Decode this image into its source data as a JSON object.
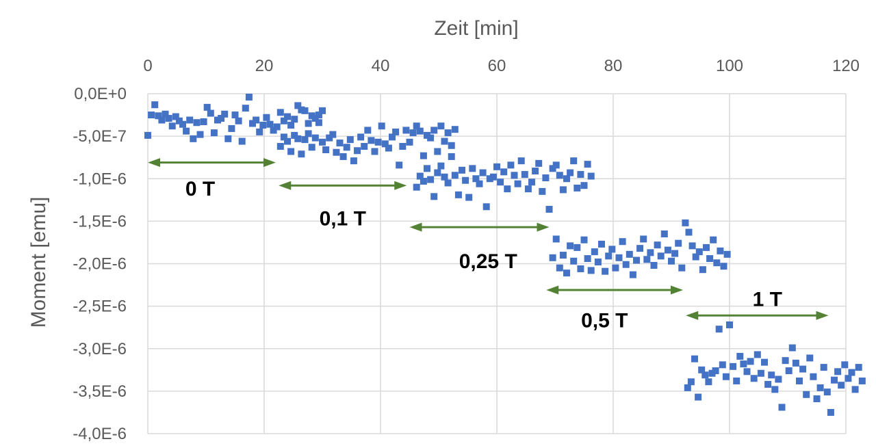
{
  "chart_data": {
    "type": "scatter",
    "xlabel": "Zeit [min]",
    "ylabel": "Moment [emu]",
    "xlim": [
      0,
      120
    ],
    "ylim": [
      -4e-06,
      0
    ],
    "x_ticks": [
      0,
      20,
      40,
      60,
      80,
      100,
      120
    ],
    "x_tick_labels": [
      "0",
      "20",
      "40",
      "60",
      "80",
      "100",
      "120"
    ],
    "y_ticks": [
      0,
      -5e-07,
      -1e-06,
      -1.5e-06,
      -2e-06,
      -2.5e-06,
      -3e-06,
      -3.5e-06,
      -4e-06
    ],
    "y_tick_labels": [
      "0,0E+0",
      "-5,0E-7",
      "-1,0E-6",
      "-1,5E-6",
      "-2,0E-6",
      "-2,5E-6",
      "-3,0E-6",
      "-3,5E-6",
      "-4,0E-6"
    ],
    "x_axis_position": "top",
    "grid": true,
    "marker_color": "#4472c4",
    "arrow_color": "#548235",
    "annotations": [
      {
        "label": "0 T",
        "x_start": 0,
        "x_end": 22,
        "arrow_y": -8.1e-07,
        "label_x": 9,
        "label_y": -1.12e-06
      },
      {
        "label": "0,1 T",
        "x_start": 22.5,
        "x_end": 44.5,
        "arrow_y": -1.08e-06,
        "label_x": 33.5,
        "label_y": -1.47e-06
      },
      {
        "label": "0,25 T",
        "x_start": 45,
        "x_end": 69,
        "arrow_y": -1.57e-06,
        "label_x": 58.5,
        "label_y": -1.97e-06
      },
      {
        "label": "0,5 T",
        "x_start": 68.5,
        "x_end": 92,
        "arrow_y": -2.31e-06,
        "label_x": 78.5,
        "label_y": -2.67e-06
      },
      {
        "label": "1 T",
        "x_start": 92.5,
        "x_end": 117,
        "arrow_y": -2.61e-06,
        "label_x": 106.5,
        "label_y": -2.42e-06
      }
    ],
    "series": [
      {
        "points": [
          [
            0,
            -4.9e-07
          ],
          [
            0.6,
            -2.5e-07
          ],
          [
            1.2,
            -1.3e-07
          ],
          [
            1.8,
            -2.6e-07
          ],
          [
            2.4,
            -3.1e-07
          ],
          [
            3,
            -2.4e-07
          ],
          [
            3.6,
            -2.9e-07
          ],
          [
            4.2,
            -3.8e-07
          ],
          [
            4.8,
            -2.7e-07
          ],
          [
            5.4,
            -3.2e-07
          ],
          [
            6,
            -3.6e-07
          ],
          [
            6.6,
            -4.4e-07
          ],
          [
            7.2,
            -3.1e-07
          ],
          [
            7.8,
            -5.3e-07
          ],
          [
            8.4,
            -3.4e-07
          ],
          [
            9,
            -4.8e-07
          ],
          [
            9.6,
            -3.3e-07
          ],
          [
            10.2,
            -1.6e-07
          ],
          [
            10.8,
            -2.3e-07
          ],
          [
            11.4,
            -4.6e-07
          ],
          [
            12,
            -3.1e-07
          ],
          [
            12.6,
            -2.9e-07
          ],
          [
            13.2,
            -2.4e-07
          ],
          [
            13.8,
            -5.3e-07
          ],
          [
            14.4,
            -4.1e-07
          ],
          [
            15,
            -2.5e-07
          ],
          [
            15.6,
            -3.2e-07
          ],
          [
            16.2,
            -5.6e-07
          ],
          [
            16.8,
            -1.7e-07
          ],
          [
            17.4,
            -4e-08
          ],
          [
            18,
            -3.5e-07
          ],
          [
            18.6,
            -3.1e-07
          ],
          [
            19.2,
            -4.5e-07
          ],
          [
            19.8,
            -3.7e-07
          ],
          [
            20.4,
            -2.8e-07
          ],
          [
            21,
            -3.6e-07
          ],
          [
            21.6,
            -4.3e-07
          ],
          [
            22.2,
            -3.9e-07
          ],
          [
            22.8,
            -2.2e-07
          ],
          [
            23.4,
            -3.2e-07
          ],
          [
            24,
            -2.7e-07
          ],
          [
            24.6,
            -3.7e-07
          ],
          [
            25.2,
            -3e-07
          ],
          [
            25.8,
            -1.4e-07
          ],
          [
            26.4,
            -1.9e-07
          ],
          [
            27,
            -2e-07
          ],
          [
            27.6,
            -3.5e-07
          ],
          [
            28.2,
            -2.6e-07
          ],
          [
            28.8,
            -2.9e-07
          ],
          [
            29.4,
            -3.4e-07
          ],
          [
            30,
            -2e-07
          ],
          [
            22.8,
            -6.2e-07
          ],
          [
            23.4,
            -5.1e-07
          ],
          [
            24,
            -5.6e-07
          ],
          [
            24.6,
            -6.8e-07
          ],
          [
            25.2,
            -4.9e-07
          ],
          [
            25.8,
            -5.3e-07
          ],
          [
            26.4,
            -7.1e-07
          ],
          [
            27,
            -5.4e-07
          ],
          [
            27.6,
            -4.7e-07
          ],
          [
            28.2,
            -6.3e-07
          ],
          [
            28.8,
            -5.2e-07
          ],
          [
            29.4,
            -2.5e-07
          ],
          [
            30,
            -5.7e-07
          ],
          [
            30.6,
            -6.6e-07
          ],
          [
            31.2,
            -5.2e-07
          ],
          [
            31.8,
            -4.8e-07
          ],
          [
            32.4,
            -6.9e-07
          ],
          [
            33,
            -5.8e-07
          ],
          [
            33.6,
            -7.4e-07
          ],
          [
            34.2,
            -6.3e-07
          ],
          [
            34.8,
            -5.4e-07
          ],
          [
            35.4,
            -7.9e-07
          ],
          [
            36,
            -6.7e-07
          ],
          [
            36.6,
            -5.1e-07
          ],
          [
            37.2,
            -6.2e-07
          ],
          [
            37.8,
            -4.3e-07
          ],
          [
            38.4,
            -5.5e-07
          ],
          [
            39,
            -6.8e-07
          ],
          [
            39.6,
            -5.7e-07
          ],
          [
            40.2,
            -3.8e-07
          ],
          [
            40.8,
            -5.9e-07
          ],
          [
            41.4,
            -6.4e-07
          ],
          [
            42,
            -5.1e-07
          ],
          [
            42.6,
            -4.5e-07
          ],
          [
            43.2,
            -8.4e-07
          ],
          [
            43.8,
            -6.2e-07
          ],
          [
            44.4,
            -4.3e-07
          ],
          [
            45,
            -5.7e-07
          ],
          [
            45.6,
            -4.6e-07
          ],
          [
            46.2,
            -3.8e-07
          ],
          [
            46.8,
            -4.4e-07
          ],
          [
            47.4,
            -7.3e-07
          ],
          [
            48,
            -4.9e-07
          ],
          [
            48.6,
            -5.2e-07
          ],
          [
            49.2,
            -4.3e-07
          ],
          [
            49.8,
            -6.8e-07
          ],
          [
            50.4,
            -3.8e-07
          ],
          [
            51,
            -5.6e-07
          ],
          [
            51.6,
            -4.6e-07
          ],
          [
            52.2,
            -6.1e-07
          ],
          [
            52.8,
            -4.2e-07
          ],
          [
            46.2,
            -1.1e-06
          ],
          [
            46.8,
            -9.7e-07
          ],
          [
            47.4,
            -1.03e-06
          ],
          [
            48,
            -8.8e-07
          ],
          [
            48.6,
            -1.01e-06
          ],
          [
            49.2,
            -1.21e-06
          ],
          [
            49.8,
            -9.3e-07
          ],
          [
            50.4,
            -8.5e-07
          ],
          [
            51,
            -9.8e-07
          ],
          [
            51.6,
            -1.05e-06
          ],
          [
            52.2,
            -7.4e-07
          ],
          [
            52.8,
            -9.6e-07
          ],
          [
            53.4,
            -1.19e-06
          ],
          [
            54,
            -9e-07
          ],
          [
            54.6,
            -1.02e-06
          ],
          [
            55.2,
            -1.22e-06
          ],
          [
            55.8,
            -8.8e-07
          ],
          [
            56.4,
            -1e-06
          ],
          [
            57,
            -1.06e-06
          ],
          [
            57.6,
            -9.3e-07
          ],
          [
            58.2,
            -1.33e-06
          ],
          [
            58.8,
            -1e-06
          ],
          [
            59.4,
            -9.8e-07
          ],
          [
            60,
            -8.6e-07
          ],
          [
            60.6,
            -1.04e-06
          ],
          [
            61.2,
            -9.2e-07
          ],
          [
            61.8,
            -1.12e-06
          ],
          [
            62.4,
            -8.4e-07
          ],
          [
            63,
            -9.6e-07
          ],
          [
            63.6,
            -1.06e-06
          ],
          [
            64.2,
            -7.9e-07
          ],
          [
            64.8,
            -9.5e-07
          ],
          [
            65.4,
            -1.12e-06
          ],
          [
            66,
            -1.04e-06
          ],
          [
            66.6,
            -9.1e-07
          ],
          [
            67.2,
            -8.2e-07
          ],
          [
            67.8,
            -1.15e-06
          ],
          [
            68.4,
            -9.9e-07
          ],
          [
            69,
            -1.36e-06
          ],
          [
            69.6,
            -8.8e-07
          ],
          [
            70.2,
            -8.4e-07
          ],
          [
            70.8,
            -9.6e-07
          ],
          [
            71.4,
            -1.13e-06
          ],
          [
            72,
            -1e-06
          ],
          [
            72.6,
            -9.3e-07
          ],
          [
            73.2,
            -7.9e-07
          ],
          [
            73.8,
            -1.11e-06
          ],
          [
            74.4,
            -9.5e-07
          ],
          [
            75,
            -1.08e-06
          ],
          [
            75.6,
            -8.3e-07
          ],
          [
            76.2,
            -9.7e-07
          ],
          [
            69.6,
            -1.93e-06
          ],
          [
            70.2,
            -1.71e-06
          ],
          [
            70.8,
            -2.05e-06
          ],
          [
            71.4,
            -1.9e-06
          ],
          [
            72,
            -2.11e-06
          ],
          [
            72.6,
            -1.79e-06
          ],
          [
            73.2,
            -1.97e-06
          ],
          [
            73.8,
            -1.81e-06
          ],
          [
            74.4,
            -2.06e-06
          ],
          [
            75,
            -1.72e-06
          ],
          [
            75.6,
            -1.94e-06
          ],
          [
            76.2,
            -2.08e-06
          ],
          [
            76.8,
            -1.86e-06
          ],
          [
            77.4,
            -1.98e-06
          ],
          [
            78,
            -1.77e-06
          ],
          [
            78.6,
            -2.09e-06
          ],
          [
            79.2,
            -1.91e-06
          ],
          [
            79.8,
            -1.83e-06
          ],
          [
            80.4,
            -2.05e-06
          ],
          [
            81,
            -1.93e-06
          ],
          [
            81.6,
            -1.74e-06
          ],
          [
            82.2,
            -2.01e-06
          ],
          [
            82.8,
            -1.89e-06
          ],
          [
            83.4,
            -2.13e-06
          ],
          [
            84,
            -1.96e-06
          ],
          [
            84.6,
            -1.82e-06
          ],
          [
            85.2,
            -1.71e-06
          ],
          [
            85.8,
            -1.95e-06
          ],
          [
            86.4,
            -1.87e-06
          ],
          [
            87,
            -2.02e-06
          ],
          [
            87.6,
            -1.78e-06
          ],
          [
            88.2,
            -1.91e-06
          ],
          [
            88.8,
            -1.65e-06
          ],
          [
            89.4,
            -1.84e-06
          ],
          [
            90,
            -1.97e-06
          ],
          [
            90.6,
            -1.88e-06
          ],
          [
            91.2,
            -1.76e-06
          ],
          [
            91.8,
            -2.05e-06
          ],
          [
            92.4,
            -1.52e-06
          ],
          [
            93,
            -1.63e-06
          ],
          [
            93.6,
            -1.79e-06
          ],
          [
            94.2,
            -1.92e-06
          ],
          [
            94.8,
            -1.86e-06
          ],
          [
            95.4,
            -2.07e-06
          ],
          [
            96,
            -1.81e-06
          ],
          [
            96.6,
            -1.94e-06
          ],
          [
            97.2,
            -1.72e-06
          ],
          [
            97.8,
            -1.99e-06
          ],
          [
            98.4,
            -1.85e-06
          ],
          [
            99,
            -2.03e-06
          ],
          [
            99.6,
            -1.89e-06
          ],
          [
            92.8,
            -3.46e-06
          ],
          [
            93.4,
            -3.39e-06
          ],
          [
            94,
            -3.12e-06
          ],
          [
            94.6,
            -3.57e-06
          ],
          [
            95.2,
            -3.25e-06
          ],
          [
            95.8,
            -3.31e-06
          ],
          [
            96.4,
            -3.39e-06
          ],
          [
            97,
            -3.29e-06
          ],
          [
            97.6,
            -3.26e-06
          ],
          [
            98.2,
            -2.77e-06
          ],
          [
            98.8,
            -3.19e-06
          ],
          [
            99.4,
            -3.33e-06
          ],
          [
            100,
            -2.72e-06
          ],
          [
            100.6,
            -3.21e-06
          ],
          [
            101.2,
            -3.38e-06
          ],
          [
            101.8,
            -3.09e-06
          ],
          [
            102.4,
            -3.18e-06
          ],
          [
            103,
            -3.27e-06
          ],
          [
            103.6,
            -3.15e-06
          ],
          [
            104.2,
            -3.35e-06
          ],
          [
            104.8,
            -3.07e-06
          ],
          [
            105.4,
            -3.29e-06
          ],
          [
            106,
            -3.16e-06
          ],
          [
            106.6,
            -3.42e-06
          ],
          [
            107.2,
            -3.31e-06
          ],
          [
            107.8,
            -3.48e-06
          ],
          [
            108.4,
            -3.36e-06
          ],
          [
            109,
            -3.69e-06
          ],
          [
            109.6,
            -3.14e-06
          ],
          [
            110.2,
            -3.26e-06
          ],
          [
            110.8,
            -2.99e-06
          ],
          [
            111.4,
            -3.17e-06
          ],
          [
            112,
            -3.38e-06
          ],
          [
            112.6,
            -3.24e-06
          ],
          [
            113.2,
            -3.54e-06
          ],
          [
            113.8,
            -3.11e-06
          ],
          [
            114.4,
            -3.33e-06
          ],
          [
            115,
            -3.59e-06
          ],
          [
            115.6,
            -3.46e-06
          ],
          [
            116.2,
            -3.22e-06
          ],
          [
            116.8,
            -3.51e-06
          ],
          [
            117.4,
            -3.75e-06
          ],
          [
            118,
            -3.37e-06
          ],
          [
            118.6,
            -3.27e-06
          ],
          [
            119.2,
            -3.43e-06
          ],
          [
            119.8,
            -3.19e-06
          ],
          [
            120.4,
            -3.35e-06
          ],
          [
            121,
            -3.28e-06
          ],
          [
            121.6,
            -3.48e-06
          ],
          [
            122.2,
            -3.22e-06
          ],
          [
            122.8,
            -3.38e-06
          ]
        ]
      }
    ]
  }
}
